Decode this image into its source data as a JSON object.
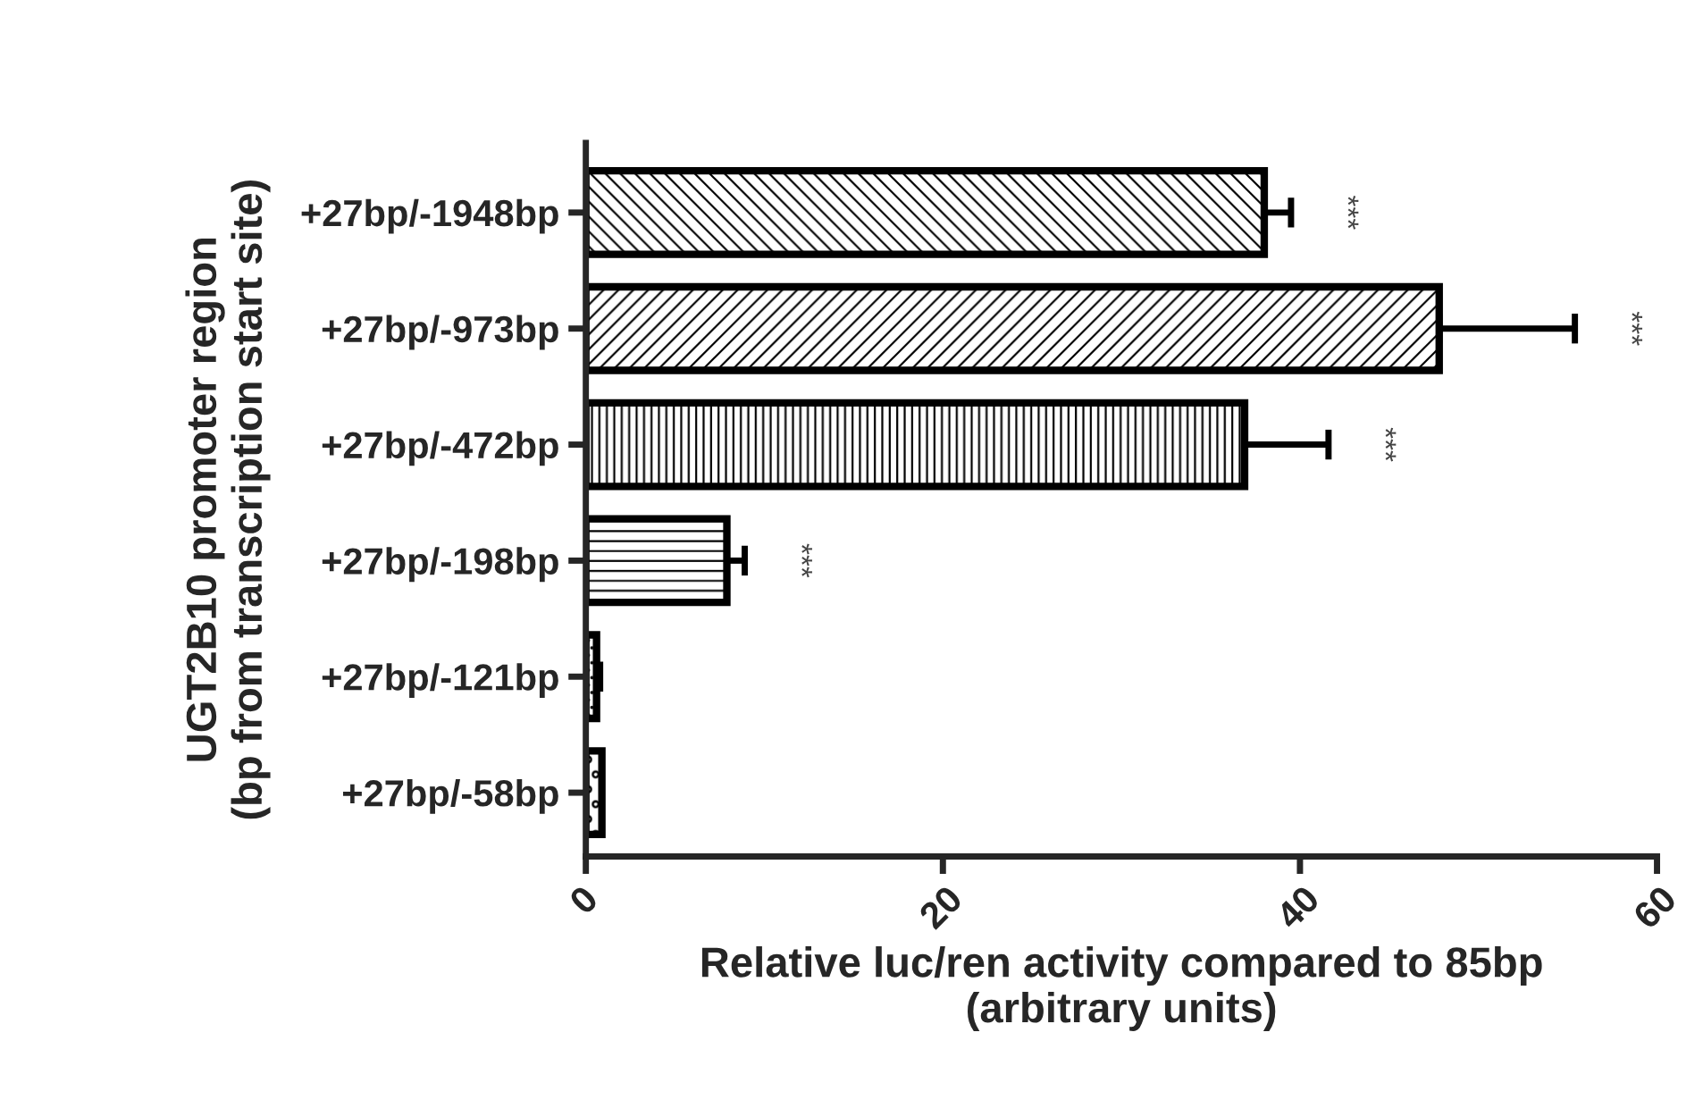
{
  "chart_data": {
    "type": "bar",
    "orientation": "horizontal",
    "categories": [
      "+27bp/-1948bp",
      "+27bp/-973bp",
      "+27bp/-472bp",
      "+27bp/-198bp",
      "+27bp/-121bp",
      "+27bp/-58bp"
    ],
    "values": [
      38.0,
      47.8,
      36.9,
      7.9,
      0.6,
      0.9
    ],
    "errors": [
      [
        38.0,
        39.5
      ],
      [
        47.8,
        55.4
      ],
      [
        36.9,
        41.6
      ],
      [
        7.9,
        8.9
      ],
      [
        0.6,
        0.8
      ],
      null
    ],
    "color": "#000000",
    "xlabel": "Relative luc/ren activity compared to 85bp\n(arbitrary units)",
    "ylabel": "UGT2B10 promoter region\n(bp from transcription start site)",
    "xlim": [
      0,
      60
    ],
    "xticks": [
      0,
      20,
      40,
      60
    ],
    "grid": false,
    "legend": false,
    "annotations": [
      "***",
      "***",
      "***",
      "***"
    ]
  }
}
